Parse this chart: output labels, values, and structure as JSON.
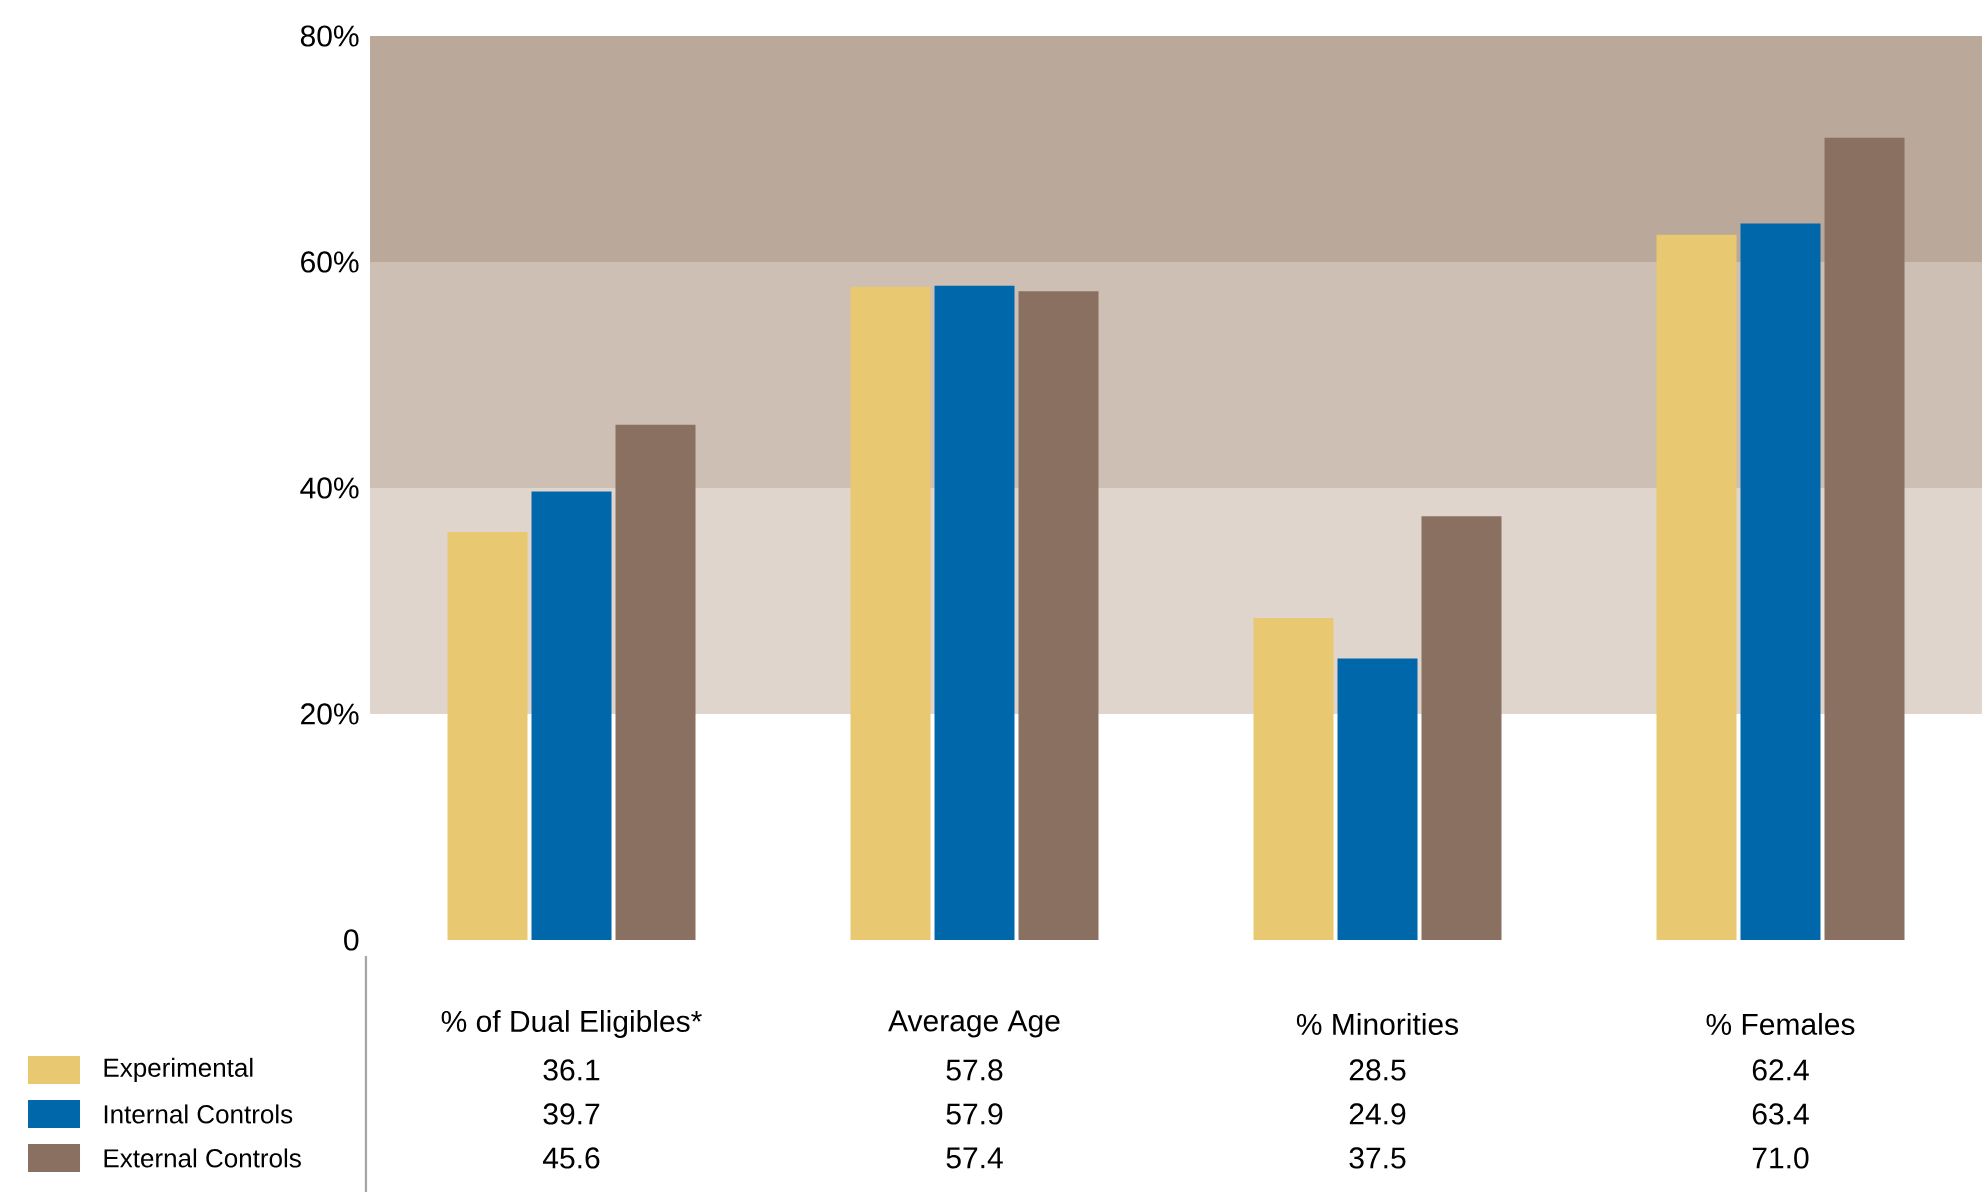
{
  "chart_data": {
    "type": "bar",
    "categories": [
      "% of Dual Eligibles*",
      "Average Age",
      "% Minorities",
      "% Females"
    ],
    "series": [
      {
        "name": "Experimental",
        "color": "#e8c870",
        "values": [
          36.1,
          57.8,
          28.5,
          62.4
        ],
        "value_labels": [
          "36.1",
          "57.8",
          "28.5",
          "62.4"
        ]
      },
      {
        "name": "Internal Controls",
        "color": "#0068aa",
        "values": [
          39.7,
          57.9,
          24.9,
          63.4
        ],
        "value_labels": [
          "39.7",
          "57.9",
          "24.9",
          "63.4"
        ]
      },
      {
        "name": "External Controls",
        "color": "#8a7060",
        "values": [
          45.6,
          57.4,
          37.5,
          71.0
        ],
        "value_labels": [
          "45.6",
          "57.4",
          "37.5",
          "71.0"
        ]
      }
    ],
    "ylim": [
      0,
      80
    ],
    "yticks": [
      0,
      {
        "value": 20,
        "label": "20%"
      },
      {
        "value": 40,
        "label": "40%"
      },
      {
        "value": 60,
        "label": "60%"
      },
      {
        "value": 80,
        "label": "80%"
      }
    ],
    "bands": [
      {
        "axis": "y",
        "from": 20,
        "to": 40,
        "color": "#e0d5cc"
      },
      {
        "axis": "y",
        "from": 40,
        "to": 60,
        "color": "#cdbfb3"
      },
      {
        "axis": "y",
        "from": 60,
        "to": 80,
        "color": "#baa99b"
      }
    ],
    "legend": "bottom left",
    "grid": false
  }
}
